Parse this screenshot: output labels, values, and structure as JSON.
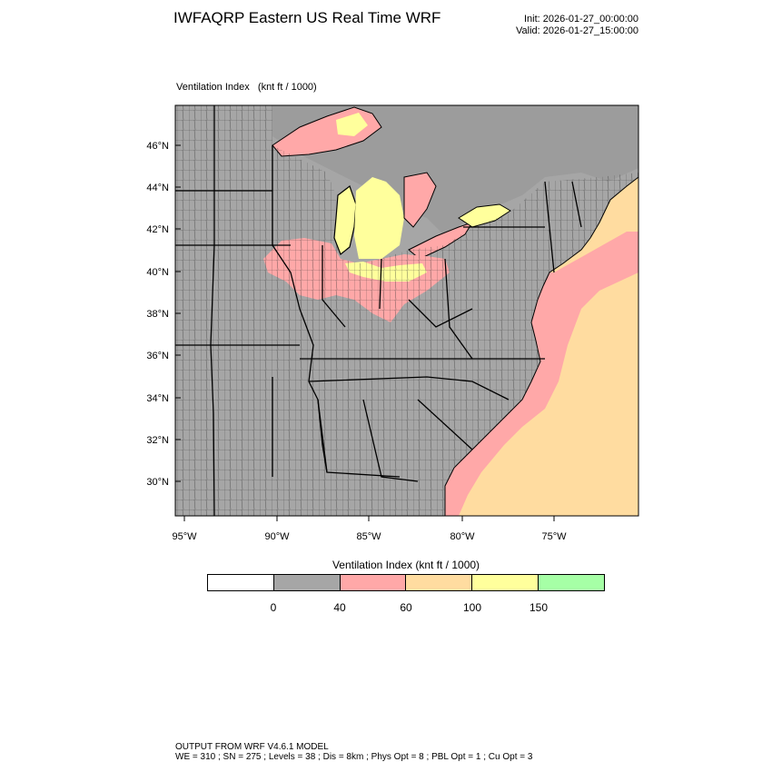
{
  "header": {
    "title": "IWFAQRP Eastern US Real Time WRF",
    "init": "Init: 2026-01-27_00:00:00",
    "valid": "Valid: 2026-01-27_15:00:00"
  },
  "field": {
    "name": "Ventilation Index",
    "units": "(knt ft / 1000)"
  },
  "map": {
    "lat_ticks": [
      "46°N",
      "44°N",
      "42°N",
      "40°N",
      "38°N",
      "36°N",
      "34°N",
      "32°N",
      "30°N"
    ],
    "lon_ticks": [
      "95°W",
      "90°W",
      "85°W",
      "80°W",
      "75°W"
    ]
  },
  "colorbar": {
    "title": "Ventilation Index  (knt ft / 1000)",
    "colors": [
      "#ffffff",
      "#a6a6a6",
      "#ffa8a8",
      "#ffdca0",
      "#ffff9c",
      "#a6ffa6"
    ],
    "tick_labels": [
      "0",
      "40",
      "60",
      "100",
      "150"
    ]
  },
  "footer": {
    "line1": "OUTPUT FROM WRF V4.6.1 MODEL",
    "line2": "WE = 310 ; SN = 275 ; Levels = 38 ; Dis = 8km ; Phys Opt = 8 ; PBL Opt = 1 ; Cu Opt = 3"
  }
}
